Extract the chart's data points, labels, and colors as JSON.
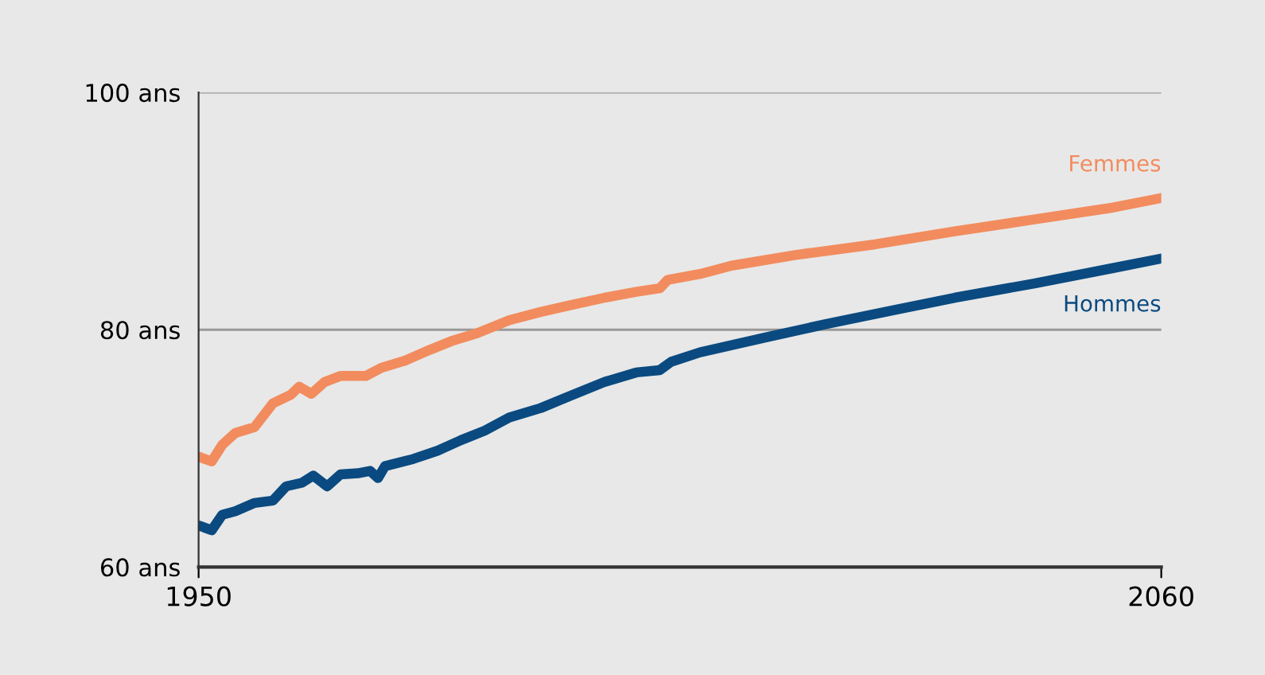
{
  "chart_data": {
    "type": "line",
    "xlim": [
      1950,
      2060
    ],
    "xticks": [
      1950,
      2060
    ],
    "ylim": [
      60,
      100
    ],
    "yticks": [
      {
        "value": 60,
        "label": "60 ans"
      },
      {
        "value": 80,
        "label": "80 ans"
      },
      {
        "value": 100,
        "label": "100 ans"
      }
    ],
    "grid": "y",
    "legend": false,
    "line_style": "solid",
    "marker": "none",
    "series": [
      {
        "name": "Femmes",
        "color": "#f28c5e",
        "x": [
          1950,
          1951.5,
          1952.7,
          1954.2,
          1956.4,
          1958.5,
          1960.5,
          1961.5,
          1962.9,
          1964.4,
          1966.2,
          1969.1,
          1970.9,
          1973.6,
          1976.4,
          1979.1,
          1981.8,
          1985.5,
          1989.1,
          1992.7,
          1996.4,
          2000,
          2002.7,
          2003.6,
          2007.3,
          2010.9,
          2018.2,
          2027.3,
          2036.4,
          2045.5,
          2054.5,
          2060
        ],
        "values": [
          69.3,
          68.9,
          70.3,
          71.3,
          71.8,
          73.8,
          74.5,
          75.2,
          74.6,
          75.6,
          76.1,
          76.1,
          76.8,
          77.4,
          78.3,
          79.1,
          79.7,
          80.8,
          81.5,
          82.1,
          82.7,
          83.2,
          83.5,
          84.2,
          84.7,
          85.4,
          86.3,
          87.2,
          88.3,
          89.3,
          90.3,
          91.1
        ]
      },
      {
        "name": "Hommes",
        "color": "#0a4a80",
        "x": [
          1950,
          1951.5,
          1952.7,
          1954.2,
          1956.4,
          1958.5,
          1960,
          1961.8,
          1963.1,
          1964.7,
          1966.2,
          1968.2,
          1969.6,
          1970.5,
          1971.3,
          1974.5,
          1977.3,
          1980,
          1982.7,
          1985.5,
          1989.1,
          1992.7,
          1996.4,
          2000,
          2002.7,
          2004,
          2007.3,
          2014.5,
          2021.8,
          2029.1,
          2036.4,
          2045.5,
          2054.5,
          2060
        ],
        "values": [
          63.5,
          63.1,
          64.4,
          64.7,
          65.4,
          65.6,
          66.8,
          67.1,
          67.7,
          66.8,
          67.8,
          67.9,
          68.1,
          67.5,
          68.5,
          69.1,
          69.8,
          70.7,
          71.5,
          72.6,
          73.4,
          74.5,
          75.6,
          76.4,
          76.6,
          77.3,
          78.1,
          79.3,
          80.5,
          81.6,
          82.7,
          83.9,
          85.2,
          86.0
        ]
      }
    ]
  }
}
